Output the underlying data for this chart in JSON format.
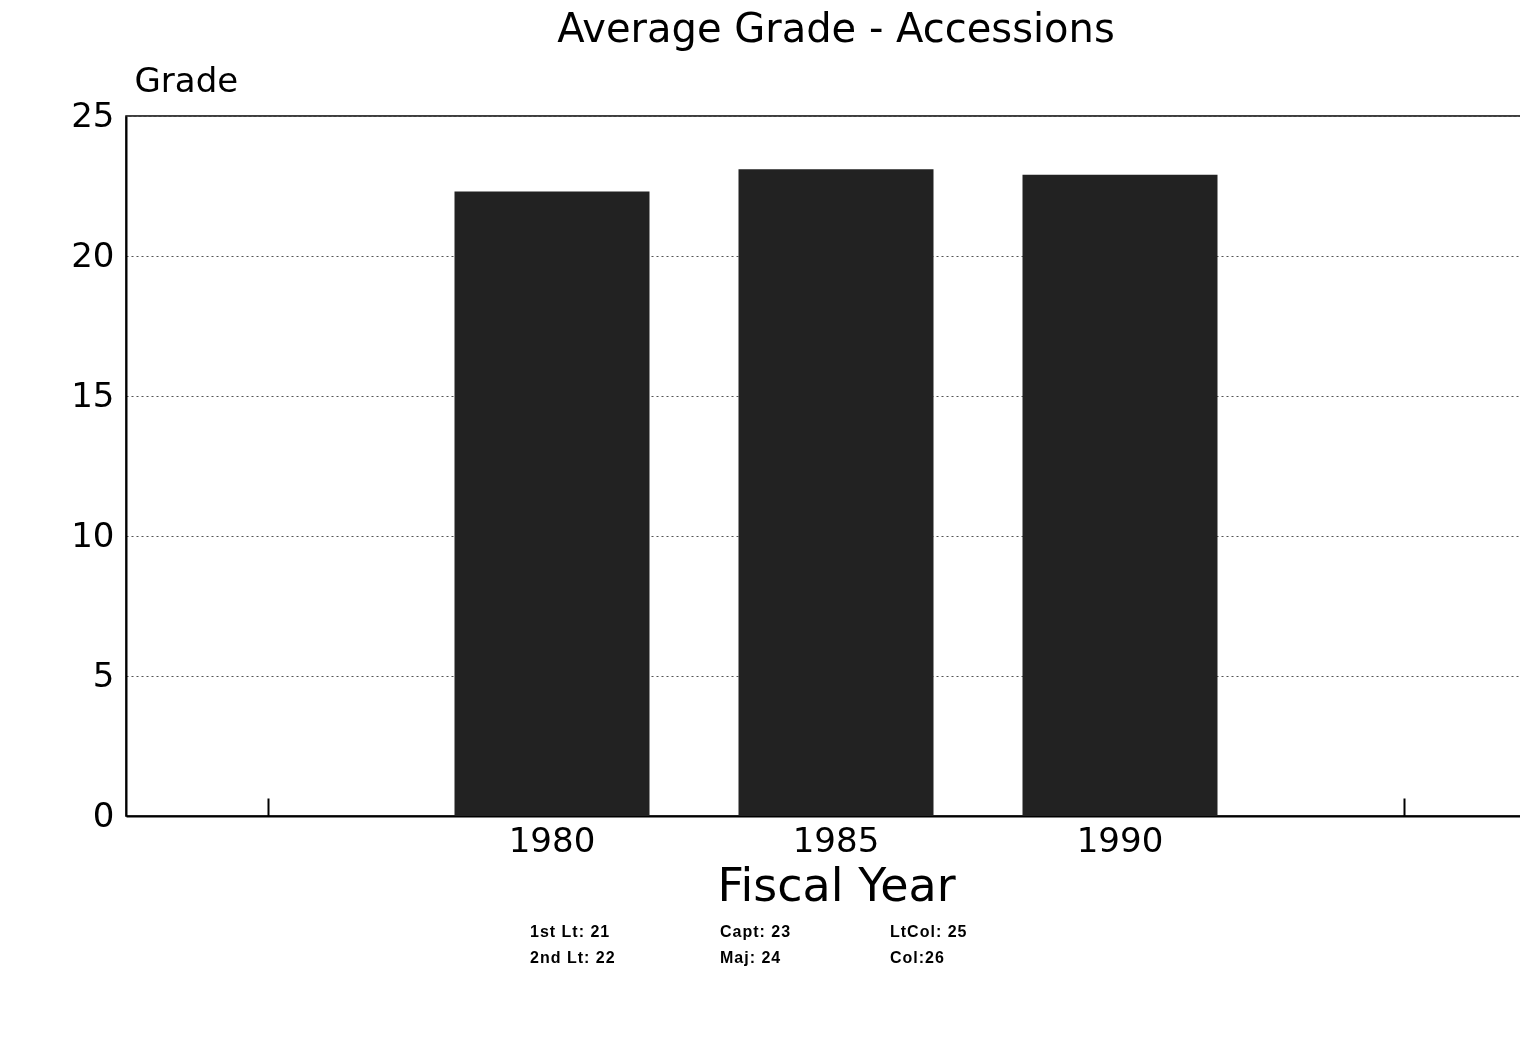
{
  "chart_data": {
    "type": "bar",
    "title": "Average Grade - Accessions",
    "xlabel": "Fiscal Year",
    "ylabel": "Grade",
    "categories": [
      null,
      "1980",
      "1985",
      "1990",
      null
    ],
    "values": [
      null,
      22.3,
      23.1,
      22.9,
      null
    ],
    "color": "#222222",
    "ylim": [
      0,
      25
    ],
    "yticks": [
      0,
      5,
      10,
      15,
      20,
      25
    ],
    "grid": "y",
    "annotations": [
      "1st Lt: 21",
      "Capt: 23",
      "LtCol: 25",
      "2nd Lt: 22",
      "Maj: 24",
      "Col:26"
    ]
  }
}
